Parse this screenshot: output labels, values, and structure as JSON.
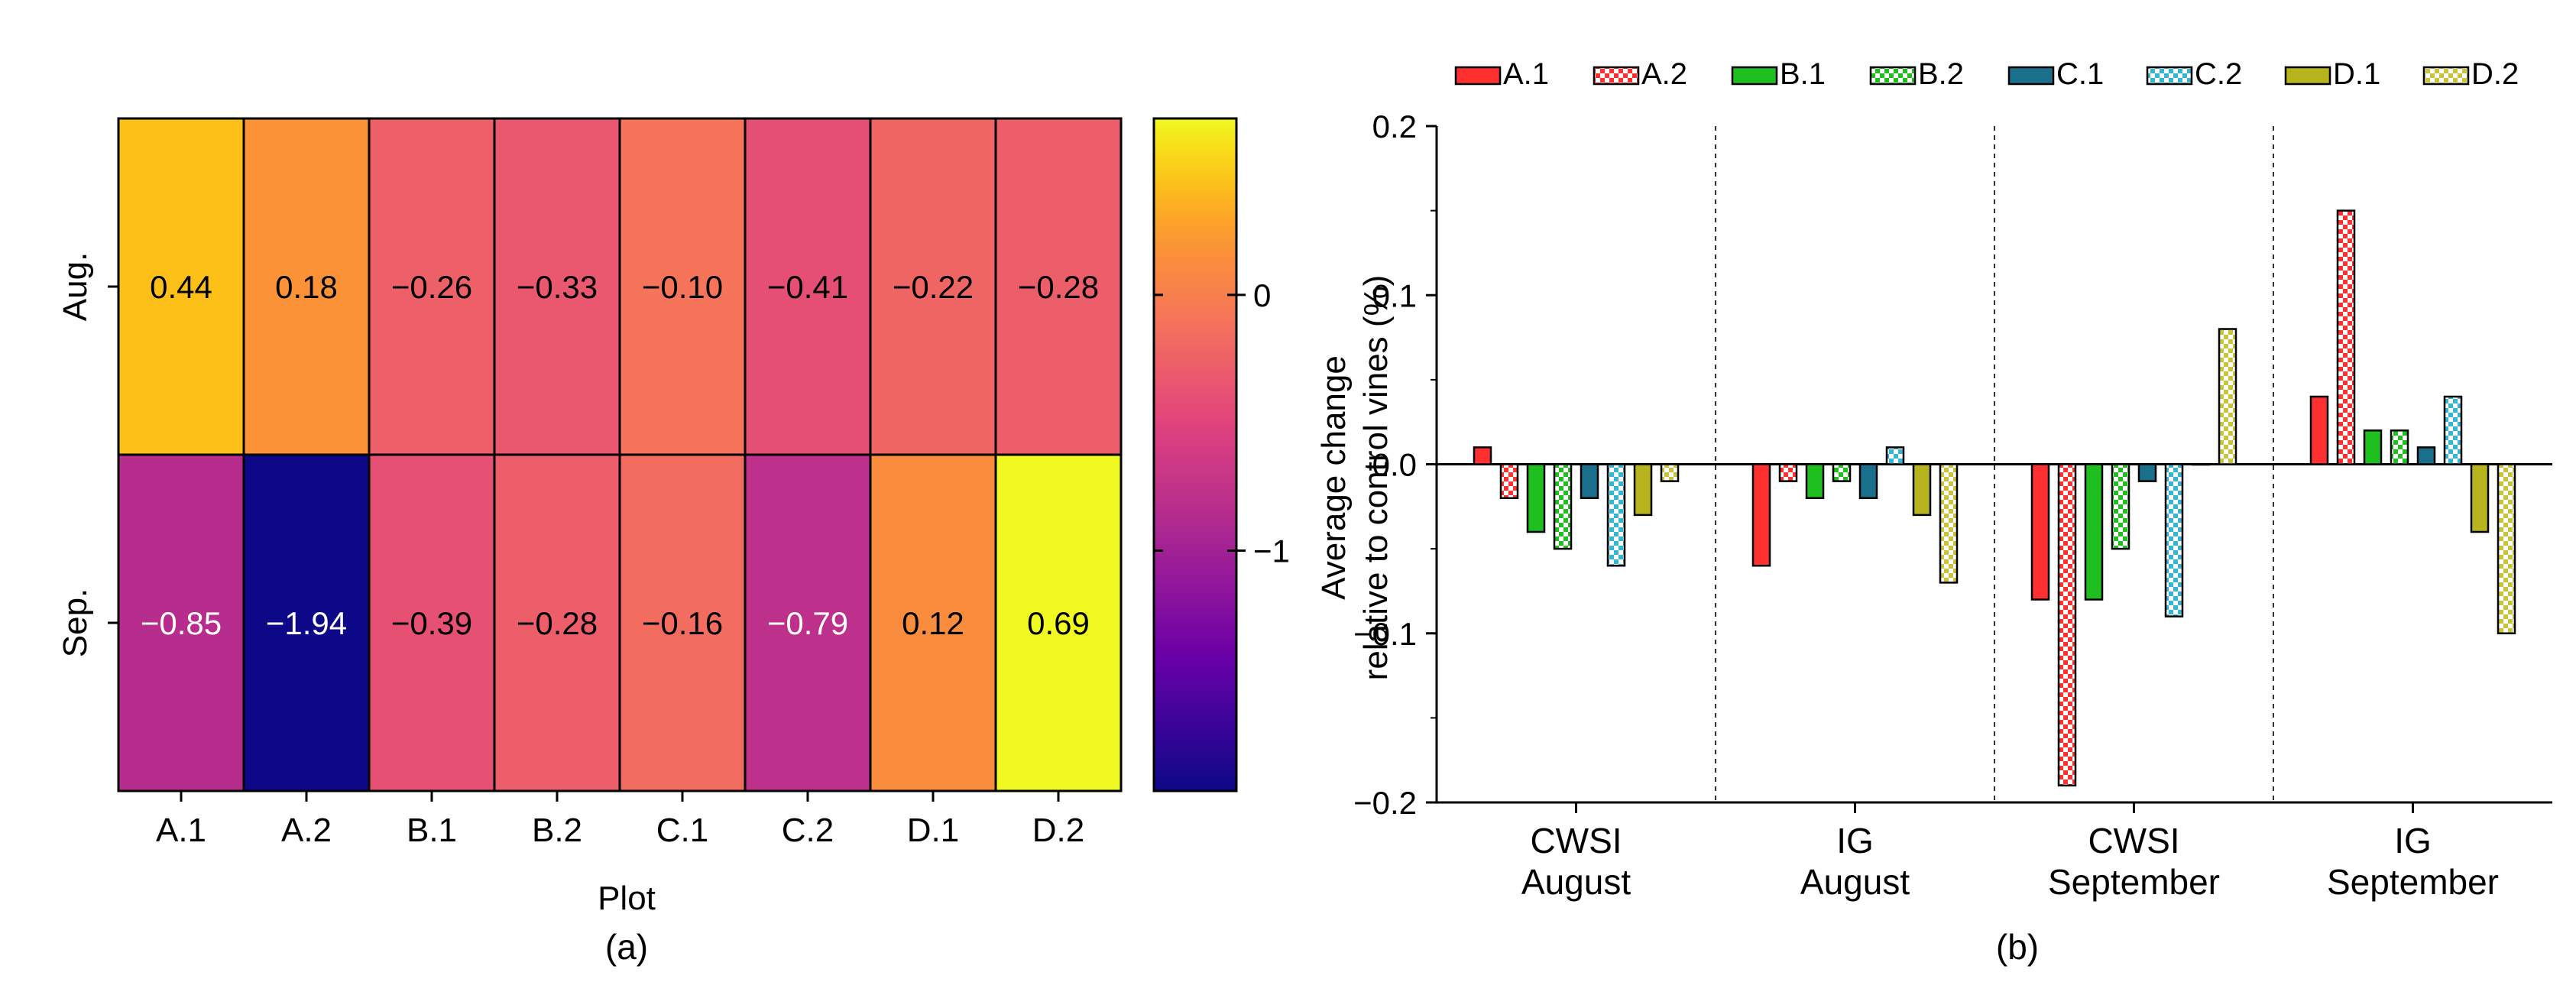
{
  "figure": {
    "heatmap_caption": "(a)",
    "bar_caption": "(b)"
  },
  "colors": {
    "A.1": "#ff3030",
    "A.2": "#ff3030",
    "B.1": "#1fbf1f",
    "B.2": "#1fbf1f",
    "C.1": "#1a6f8c",
    "C.2": "#34b6d2",
    "D.1": "#b8b41e",
    "D.2": "#c9c43a"
  },
  "chart_data": [
    {
      "type": "heatmap",
      "title": "",
      "xlabel": "Plot",
      "ylabel": "",
      "x_categories": [
        "A.1",
        "A.2",
        "B.1",
        "B.2",
        "C.1",
        "C.2",
        "D.1",
        "D.2"
      ],
      "y_categories": [
        "Aug.",
        "Sep."
      ],
      "values": [
        [
          0.44,
          0.18,
          -0.26,
          -0.33,
          -0.1,
          -0.41,
          -0.22,
          -0.28
        ],
        [
          -0.85,
          -1.94,
          -0.39,
          -0.28,
          -0.16,
          -0.79,
          0.12,
          0.69
        ]
      ],
      "value_labels": [
        [
          "0.44",
          "0.18",
          "−0.26",
          "−0.33",
          "−0.10",
          "−0.41",
          "−0.22",
          "−0.28"
        ],
        [
          "−0.85",
          "−1.94",
          "−0.39",
          "−0.28",
          "−0.16",
          "−0.79",
          "0.12",
          "0.69"
        ]
      ],
      "colorbar": {
        "range": [
          -1.94,
          0.69
        ],
        "ticks": [
          0,
          -1
        ],
        "tick_labels": [
          "0",
          "−1"
        ],
        "colormap": "plasma"
      }
    },
    {
      "type": "bar",
      "title": "",
      "xlabel": "",
      "ylabel_lines": [
        "Average change",
        "relative to control vines (%)"
      ],
      "ylim": [
        -0.2,
        0.2
      ],
      "yticks": [
        0.2,
        0.1,
        0.0,
        -0.1,
        -0.2
      ],
      "ytick_labels": [
        "0.2",
        "0.1",
        "0.0",
        "−0.1",
        "−0.2"
      ],
      "groups": [
        [
          "CWSI",
          "August"
        ],
        [
          "IG",
          "August"
        ],
        [
          "CWSI",
          "September"
        ],
        [
          "IG",
          "September"
        ]
      ],
      "legend_position": "top",
      "series": [
        {
          "name": "A.1",
          "pattern": "solid",
          "values": [
            0.01,
            -0.06,
            -0.08,
            0.04
          ]
        },
        {
          "name": "A.2",
          "pattern": "checker",
          "values": [
            -0.02,
            -0.01,
            -0.19,
            0.15
          ]
        },
        {
          "name": "B.1",
          "pattern": "solid",
          "values": [
            -0.04,
            -0.02,
            -0.08,
            0.02
          ]
        },
        {
          "name": "B.2",
          "pattern": "checker",
          "values": [
            -0.05,
            -0.01,
            -0.05,
            0.02
          ]
        },
        {
          "name": "C.1",
          "pattern": "solid",
          "values": [
            -0.02,
            -0.02,
            -0.01,
            0.01
          ]
        },
        {
          "name": "C.2",
          "pattern": "checker",
          "values": [
            -0.06,
            0.01,
            -0.09,
            0.04
          ]
        },
        {
          "name": "D.1",
          "pattern": "solid",
          "values": [
            -0.03,
            -0.03,
            0.0,
            -0.04
          ]
        },
        {
          "name": "D.2",
          "pattern": "checker",
          "values": [
            -0.01,
            -0.07,
            0.08,
            -0.1
          ]
        }
      ]
    }
  ]
}
